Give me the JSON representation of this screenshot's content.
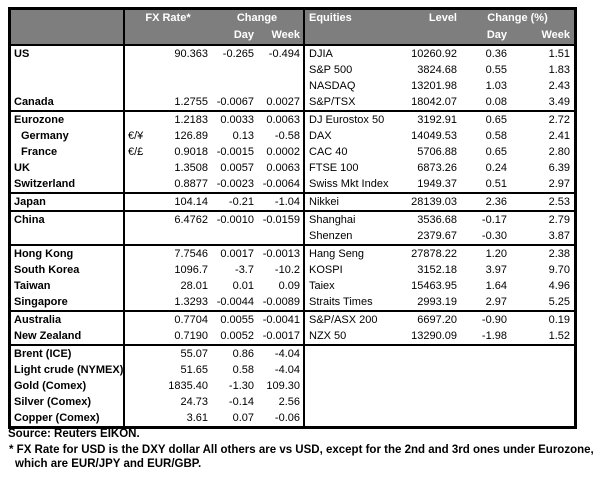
{
  "colors": {
    "header_bg": "#7e7e7e",
    "header_text": "#ffffff",
    "border": "#000000",
    "text": "#000000"
  },
  "table": {
    "header": {
      "fx_rate": "FX Rate*",
      "change": "Change",
      "day": "Day",
      "week": "Week",
      "equities": "Equities",
      "level": "Level",
      "change_pct": "Change (%)"
    },
    "sections": [
      {
        "rows": [
          {
            "country": "US",
            "symbol": "",
            "fx": "90.363",
            "fx_day": "-0.265",
            "fx_week": "-0.494",
            "equity": "DJIA",
            "level": "10260.92",
            "eq_day": "0.36",
            "eq_week": "1.51"
          },
          {
            "country": "",
            "symbol": "",
            "fx": "",
            "fx_day": "",
            "fx_week": "",
            "equity": "S&P 500",
            "level": "3824.68",
            "eq_day": "0.55",
            "eq_week": "1.83"
          },
          {
            "country": "",
            "symbol": "",
            "fx": "",
            "fx_day": "",
            "fx_week": "",
            "equity": "NASDAQ",
            "level": "13201.98",
            "eq_day": "1.03",
            "eq_week": "2.43"
          },
          {
            "country": "Canada",
            "symbol": "",
            "fx": "1.2755",
            "fx_day": "-0.0067",
            "fx_week": "0.0027",
            "equity": "S&P/TSX",
            "level": "18042.07",
            "eq_day": "0.08",
            "eq_week": "3.49"
          }
        ]
      },
      {
        "rows": [
          {
            "country": "Eurozone",
            "symbol": "",
            "fx": "1.2183",
            "fx_day": "0.0033",
            "fx_week": "0.0063",
            "equity": "DJ Eurostox 50",
            "level": "3192.91",
            "eq_day": "0.65",
            "eq_week": "2.72"
          },
          {
            "country": "Germany",
            "indent": true,
            "symbol": "€/¥",
            "fx": "126.89",
            "fx_day": "0.13",
            "fx_week": "-0.58",
            "equity": "DAX",
            "level": "14049.53",
            "eq_day": "0.58",
            "eq_week": "2.41"
          },
          {
            "country": "France",
            "indent": true,
            "symbol": "€/£",
            "fx": "0.9018",
            "fx_day": "-0.0015",
            "fx_week": "0.0002",
            "equity": "CAC 40",
            "level": "5706.88",
            "eq_day": "0.65",
            "eq_week": "2.80"
          },
          {
            "country": "UK",
            "symbol": "",
            "fx": "1.3508",
            "fx_day": "0.0057",
            "fx_week": "0.0063",
            "equity": "FTSE 100",
            "level": "6873.26",
            "eq_day": "0.24",
            "eq_week": "6.39"
          },
          {
            "country": "Switzerland",
            "symbol": "",
            "fx": "0.8877",
            "fx_day": "-0.0023",
            "fx_week": "-0.0064",
            "equity": "Swiss Mkt Index",
            "level": "1949.37",
            "eq_day": "0.51",
            "eq_week": "2.97"
          }
        ]
      },
      {
        "rows": [
          {
            "country": "Japan",
            "symbol": "",
            "fx": "104.14",
            "fx_day": "-0.21",
            "fx_week": "-1.04",
            "equity": "Nikkei",
            "level": "28139.03",
            "eq_day": "2.36",
            "eq_week": "2.53"
          }
        ]
      },
      {
        "rows": [
          {
            "country": "China",
            "symbol": "",
            "fx": "6.4762",
            "fx_day": "-0.0010",
            "fx_week": "-0.0159",
            "equity": "Shanghai",
            "level": "3536.68",
            "eq_day": "-0.17",
            "eq_week": "2.79"
          },
          {
            "country": "",
            "symbol": "",
            "fx": "",
            "fx_day": "",
            "fx_week": "",
            "equity": "Shenzen",
            "level": "2379.67",
            "eq_day": "-0.30",
            "eq_week": "3.87"
          }
        ]
      },
      {
        "rows": [
          {
            "country": "Hong Kong",
            "symbol": "",
            "fx": "7.7546",
            "fx_day": "0.0017",
            "fx_week": "-0.0013",
            "equity": "Hang Seng",
            "level": "27878.22",
            "eq_day": "1.20",
            "eq_week": "2.38"
          },
          {
            "country": "South Korea",
            "symbol": "",
            "fx": "1096.7",
            "fx_day": "-3.7",
            "fx_week": "-10.2",
            "equity": "KOSPI",
            "level": "3152.18",
            "eq_day": "3.97",
            "eq_week": "9.70"
          },
          {
            "country": "Taiwan",
            "symbol": "",
            "fx": "28.01",
            "fx_day": "0.01",
            "fx_week": "0.09",
            "equity": "Taiex",
            "level": "15463.95",
            "eq_day": "1.64",
            "eq_week": "4.96"
          },
          {
            "country": "Singapore",
            "symbol": "",
            "fx": "1.3293",
            "fx_day": "-0.0044",
            "fx_week": "-0.0089",
            "equity": "Straits Times",
            "level": "2993.19",
            "eq_day": "2.97",
            "eq_week": "5.25"
          }
        ]
      },
      {
        "rows": [
          {
            "country": "Australia",
            "symbol": "",
            "fx": "0.7704",
            "fx_day": "0.0055",
            "fx_week": "-0.0041",
            "equity": "S&P/ASX 200",
            "level": "6697.20",
            "eq_day": "-0.90",
            "eq_week": "0.19"
          },
          {
            "country": "New Zealand",
            "symbol": "",
            "fx": "0.7190",
            "fx_day": "0.0052",
            "fx_week": "-0.0017",
            "equity": "NZX 50",
            "level": "13290.09",
            "eq_day": "-1.98",
            "eq_week": "1.52"
          }
        ]
      },
      {
        "rows": [
          {
            "country": "Brent (ICE)",
            "symbol": "",
            "fx": "55.07",
            "fx_day": "0.86",
            "fx_week": "-4.04",
            "equity": "",
            "level": "",
            "eq_day": "",
            "eq_week": ""
          },
          {
            "country": "Light crude (NYMEX)",
            "symbol": "",
            "fx": "51.65",
            "fx_day": "0.58",
            "fx_week": "-4.04",
            "equity": "",
            "level": "",
            "eq_day": "",
            "eq_week": ""
          },
          {
            "country": "Gold (Comex)",
            "symbol": "",
            "fx": "1835.40",
            "fx_day": "-1.30",
            "fx_week": "109.30",
            "equity": "",
            "level": "",
            "eq_day": "",
            "eq_week": ""
          },
          {
            "country": "Silver (Comex)",
            "symbol": "",
            "fx": "24.73",
            "fx_day": "-0.14",
            "fx_week": "2.56",
            "equity": "",
            "level": "",
            "eq_day": "",
            "eq_week": ""
          },
          {
            "country": "Copper (Comex)",
            "symbol": "",
            "fx": "3.61",
            "fx_day": "0.07",
            "fx_week": "-0.06",
            "equity": "",
            "level": "",
            "eq_day": "",
            "eq_week": ""
          }
        ]
      }
    ]
  },
  "footer": {
    "source": "Source:  Reuters EIKON.",
    "footnote1": "* FX Rate for USD is the DXY dollar  All others are vs USD, except for the 2nd and 3rd ones under Eurozone,",
    "footnote2": "which are EUR/JPY and EUR/GBP."
  }
}
